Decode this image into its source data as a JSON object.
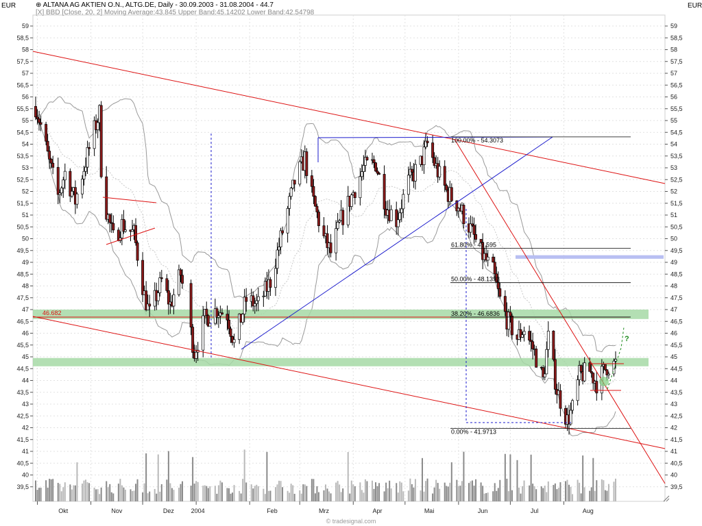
{
  "header": {
    "title": "ALTANA AG AKTIEN O.N., ALTG.DE, Daily - 30.09.2003 - 31.08.2004 - 44.7",
    "subtitle": "[X] BBD [Close, 20, 2] Moving Average:43.845 Upper Band:45.14202 Lower Band:42.54798",
    "currency_left": "EUR",
    "currency_right": "EUR",
    "watermark": "© tradesignal.com"
  },
  "colors": {
    "candle_up": "#ffffff",
    "candle_down": "#8b1a1a",
    "bands": "#999999",
    "trend_red": "#dd1111",
    "trend_blue": "#1a1acc",
    "support_zone": "#a6d9a6",
    "resistance_zone": "#b8bff2",
    "fib_line": "#000000",
    "forecast": "#1a8a1a",
    "volume": "#8a8a8a"
  },
  "chart_data": {
    "type": "candlestick",
    "ylim": [
      39.2,
      59.3
    ],
    "y_ticks": [
      "59",
      "58,5",
      "58",
      "57,5",
      "57",
      "56,5",
      "56",
      "55,5",
      "55",
      "54,5",
      "54",
      "53,5",
      "53",
      "52,5",
      "52",
      "51,5",
      "51",
      "50,5",
      "50",
      "49,5",
      "49",
      "48,5",
      "48",
      "47,5",
      "47",
      "46,5",
      "46",
      "45,5",
      "45",
      "44,5",
      "44",
      "43,5",
      "43",
      "42,5",
      "42",
      "41,5",
      "41",
      "40,5",
      "40",
      "39,5"
    ],
    "x_labels": [
      "Okt",
      "Nov",
      "Dez",
      "2004",
      "Feb",
      "Mrz",
      "Apr",
      "Mai",
      "Jun",
      "Jul",
      "Aug"
    ],
    "close_path": [
      {
        "day": "2003-09-30",
        "close": 55.6
      },
      {
        "day": "2003-10-03",
        "close": 54.8
      },
      {
        "day": "2003-10-08",
        "close": 53.2
      },
      {
        "day": "2003-10-13",
        "close": 51.8
      },
      {
        "day": "2003-10-17",
        "close": 52.8
      },
      {
        "day": "2003-10-23",
        "close": 51.6
      },
      {
        "day": "2003-10-28",
        "close": 53.0
      },
      {
        "day": "2003-11-03",
        "close": 54.6
      },
      {
        "day": "2003-11-06",
        "close": 55.3
      },
      {
        "day": "2003-11-07",
        "close": 53.0
      },
      {
        "day": "2003-11-10",
        "close": 51.2
      },
      {
        "day": "2003-11-14",
        "close": 50.0
      },
      {
        "day": "2003-11-19",
        "close": 50.6
      },
      {
        "day": "2003-11-26",
        "close": 50.2
      },
      {
        "day": "2003-12-02",
        "close": 47.6
      },
      {
        "day": "2003-12-05",
        "close": 46.8
      },
      {
        "day": "2003-12-12",
        "close": 48.2
      },
      {
        "day": "2003-12-17",
        "close": 47.2
      },
      {
        "day": "2003-12-23",
        "close": 48.5
      },
      {
        "day": "2003-12-31",
        "close": 45.2
      },
      {
        "day": "2004-01-06",
        "close": 46.6
      },
      {
        "day": "2004-01-13",
        "close": 47.0
      },
      {
        "day": "2004-01-19",
        "close": 46.8
      },
      {
        "day": "2004-01-23",
        "close": 45.6
      },
      {
        "day": "2004-01-30",
        "close": 47.4
      },
      {
        "day": "2004-02-06",
        "close": 47.2
      },
      {
        "day": "2004-02-13",
        "close": 48.2
      },
      {
        "day": "2004-02-20",
        "close": 50.3
      },
      {
        "day": "2004-02-27",
        "close": 52.4
      },
      {
        "day": "2004-03-04",
        "close": 53.4
      },
      {
        "day": "2004-03-08",
        "close": 51.8
      },
      {
        "day": "2004-03-15",
        "close": 50.0
      },
      {
        "day": "2004-03-19",
        "close": 49.4
      },
      {
        "day": "2004-03-25",
        "close": 50.8
      },
      {
        "day": "2004-03-31",
        "close": 51.8
      },
      {
        "day": "2004-04-07",
        "close": 53.0
      },
      {
        "day": "2004-04-14",
        "close": 53.2
      },
      {
        "day": "2004-04-20",
        "close": 51.4
      },
      {
        "day": "2004-04-26",
        "close": 50.8
      },
      {
        "day": "2004-05-03",
        "close": 52.4
      },
      {
        "day": "2004-05-10",
        "close": 53.2
      },
      {
        "day": "2004-05-14",
        "close": 54.0
      },
      {
        "day": "2004-05-19",
        "close": 53.0
      },
      {
        "day": "2004-05-25",
        "close": 52.0
      },
      {
        "day": "2004-06-01",
        "close": 51.4
      },
      {
        "day": "2004-06-08",
        "close": 50.4
      },
      {
        "day": "2004-06-14",
        "close": 49.4
      },
      {
        "day": "2004-06-21",
        "close": 48.6
      },
      {
        "day": "2004-06-25",
        "close": 47.4
      },
      {
        "day": "2004-06-29",
        "close": 46.6
      },
      {
        "day": "2004-07-05",
        "close": 45.8
      },
      {
        "day": "2004-07-09",
        "close": 46.2
      },
      {
        "day": "2004-07-15",
        "close": 45.2
      },
      {
        "day": "2004-07-20",
        "close": 44.0
      },
      {
        "day": "2004-07-23",
        "close": 45.8
      },
      {
        "day": "2004-07-28",
        "close": 43.6
      },
      {
        "day": "2004-08-03",
        "close": 42.3
      },
      {
        "day": "2004-08-06",
        "close": 42.8
      },
      {
        "day": "2004-08-10",
        "close": 44.2
      },
      {
        "day": "2004-08-16",
        "close": 44.4
      },
      {
        "day": "2004-08-20",
        "close": 43.9
      },
      {
        "day": "2004-08-26",
        "close": 44.6
      },
      {
        "day": "2004-08-31",
        "close": 44.7
      }
    ],
    "fibonacci": [
      {
        "label": "100.00% - 54.3073",
        "price": 54.3073
      },
      {
        "label": "61.80% - 49.595",
        "price": 49.595
      },
      {
        "label": "50.00% - 48.1393",
        "price": 48.1393
      },
      {
        "label": "38.20% - 46.6836",
        "price": 46.6836
      },
      {
        "label": "0.00% - 41.9713",
        "price": 41.9713
      }
    ],
    "horizontal_level": {
      "label": "46.682",
      "price": 46.682
    },
    "support_zones": [
      {
        "low": 46.6,
        "high": 47.0
      },
      {
        "low": 44.6,
        "high": 44.95
      }
    ],
    "resistance_zone": {
      "low": 49.15,
      "high": 49.3
    },
    "forecast_label": "?"
  }
}
